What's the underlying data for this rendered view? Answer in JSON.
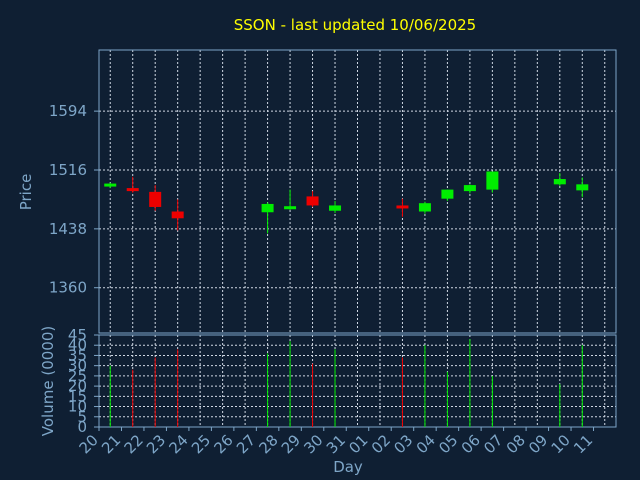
{
  "chart_data": {
    "type": "candlestick",
    "title": "SSON - last updated 10/06/2025",
    "xlabel": "Day",
    "price_panel": {
      "ylabel": "Price",
      "yticks": [
        1360,
        1438,
        1516,
        1594
      ],
      "ylim": [
        1300,
        1675
      ]
    },
    "volume_panel": {
      "ylabel": "Volume (0000)",
      "yticks": [
        0,
        5,
        10,
        15,
        20,
        25,
        30,
        35,
        40,
        45
      ],
      "ylim": [
        0,
        45
      ]
    },
    "x_tick_labels": [
      "20",
      "21",
      "22",
      "23",
      "24",
      "25",
      "26",
      "27",
      "28",
      "29",
      "30",
      "31",
      "01",
      "02",
      "03",
      "04",
      "05",
      "06",
      "07",
      "08",
      "09",
      "10",
      "11"
    ],
    "candles": [
      {
        "day": "20",
        "open": 1495,
        "high": 1499,
        "low": 1492,
        "close": 1498,
        "volume": 30
      },
      {
        "day": "21",
        "open": 1492,
        "high": 1507,
        "low": 1486,
        "close": 1488,
        "volume": 28
      },
      {
        "day": "22",
        "open": 1487,
        "high": 1496,
        "low": 1462,
        "close": 1467,
        "volume": 34
      },
      {
        "day": "23",
        "open": 1461,
        "high": 1477,
        "low": 1436,
        "close": 1452,
        "volume": 38
      },
      {
        "day": "27",
        "open": 1460,
        "high": 1473,
        "low": 1432,
        "close": 1471,
        "volume": 36
      },
      {
        "day": "28",
        "open": 1465,
        "high": 1490,
        "low": 1463,
        "close": 1468,
        "volume": 42
      },
      {
        "day": "29",
        "open": 1481,
        "high": 1488,
        "low": 1467,
        "close": 1469,
        "volume": 31
      },
      {
        "day": "30",
        "open": 1462,
        "high": 1475,
        "low": 1459,
        "close": 1469,
        "volume": 38
      },
      {
        "day": "02",
        "open": 1469,
        "high": 1478,
        "low": 1454,
        "close": 1466,
        "volume": 34
      },
      {
        "day": "03",
        "open": 1461,
        "high": 1474,
        "low": 1458,
        "close": 1472,
        "volume": 40
      },
      {
        "day": "04",
        "open": 1478,
        "high": 1490,
        "low": 1475,
        "close": 1490,
        "volume": 27
      },
      {
        "day": "05",
        "open": 1488,
        "high": 1497,
        "low": 1485,
        "close": 1496,
        "volume": 43
      },
      {
        "day": "06",
        "open": 1490,
        "high": 1514,
        "low": 1486,
        "close": 1514,
        "volume": 25
      },
      {
        "day": "09",
        "open": 1497,
        "high": 1512,
        "low": 1495,
        "close": 1504,
        "volume": 21
      },
      {
        "day": "10",
        "open": 1489,
        "high": 1506,
        "low": 1480,
        "close": 1497,
        "volume": 40
      }
    ],
    "colors": {
      "background": "#0f1f33",
      "axes": "#7ea6c8",
      "grid": "#d0d8e4",
      "title": "#ffff00",
      "up": "#00ee00",
      "down": "#ee0000",
      "label": "#7ea6c8"
    },
    "grid": true
  }
}
